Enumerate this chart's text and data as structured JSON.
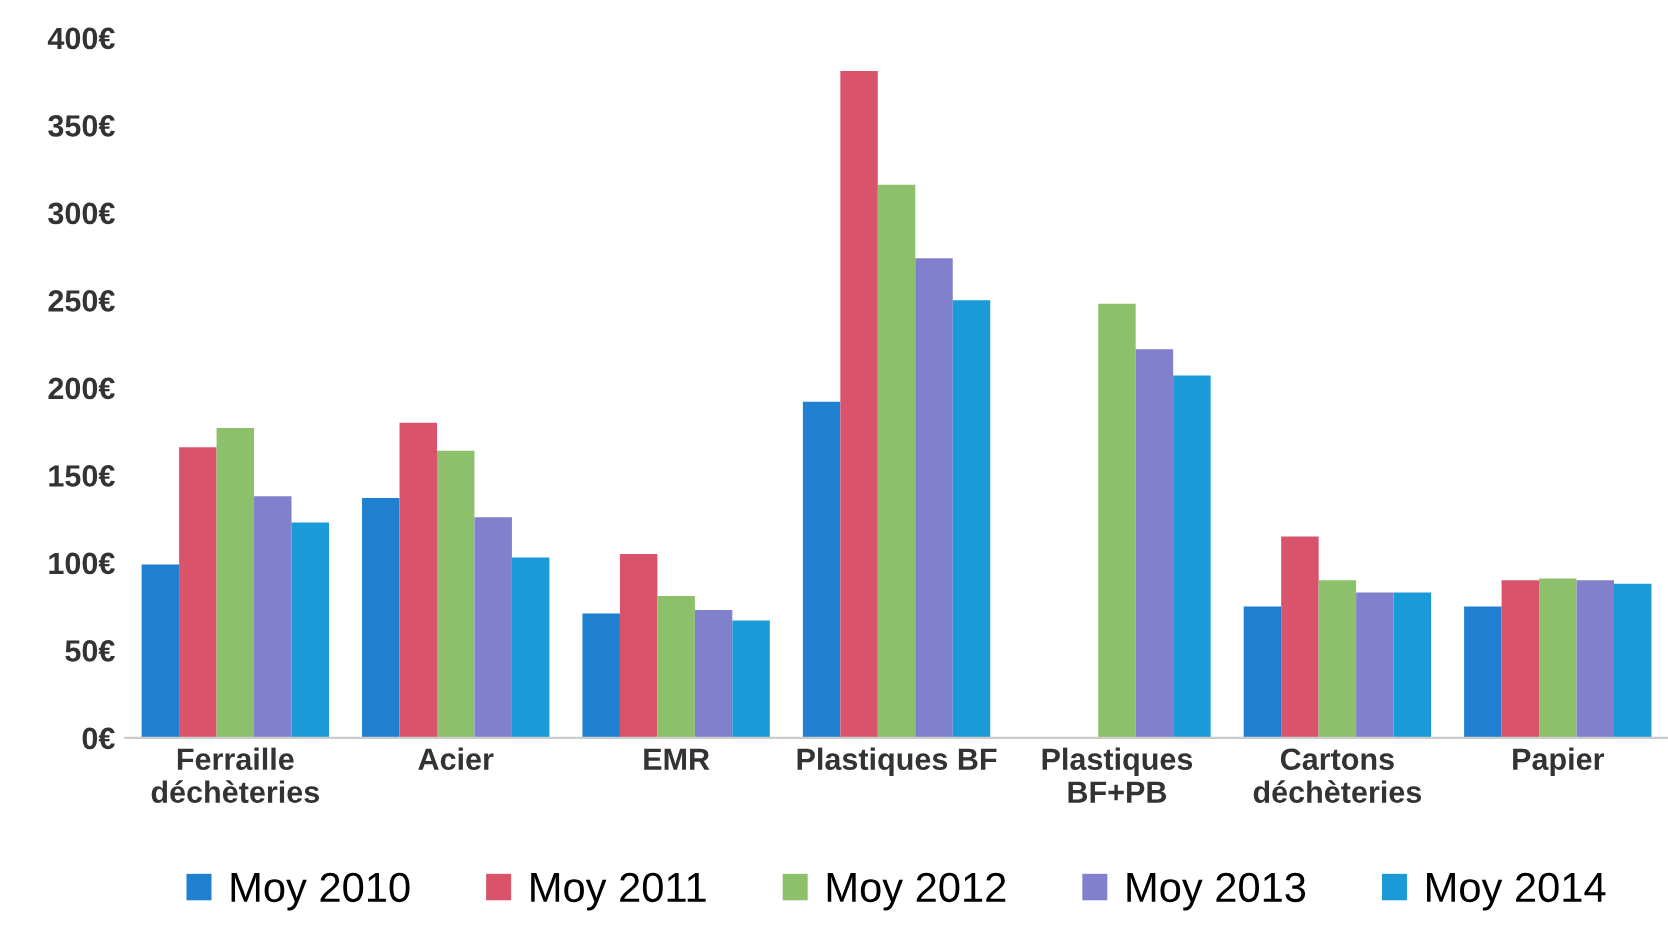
{
  "chart_data": {
    "type": "bar",
    "categories": [
      "Ferraille\ndéchèteries",
      "Acier",
      "EMR",
      "Plastiques BF",
      "Plastiques\nBF+PB",
      "Cartons\ndéchèteries",
      "Papier"
    ],
    "series": [
      {
        "name": "Moy 2010",
        "color": "#1f7fd0",
        "values": [
          99,
          137,
          71,
          192,
          null,
          75,
          75
        ]
      },
      {
        "name": "Moy 2011",
        "color": "#d9536b",
        "values": [
          166,
          180,
          105,
          381,
          null,
          115,
          90
        ]
      },
      {
        "name": "Moy 2012",
        "color": "#8cc06a",
        "values": [
          177,
          164,
          81,
          316,
          248,
          90,
          91
        ]
      },
      {
        "name": "Moy 2013",
        "color": "#8080cc",
        "values": [
          138,
          126,
          73,
          274,
          222,
          83,
          90
        ]
      },
      {
        "name": "Moy 2014",
        "color": "#1a9ad6",
        "values": [
          123,
          103,
          67,
          250,
          207,
          83,
          88
        ]
      }
    ],
    "ylim": [
      0,
      400
    ],
    "yticks": [
      {
        "value": 0,
        "label": "0€"
      },
      {
        "value": 50,
        "label": "50€"
      },
      {
        "value": 100,
        "label": "100€"
      },
      {
        "value": 150,
        "label": "150€"
      },
      {
        "value": 200,
        "label": "200€"
      },
      {
        "value": 250,
        "label": "250€"
      },
      {
        "value": 300,
        "label": "300€"
      },
      {
        "value": 350,
        "label": "350€"
      },
      {
        "value": 400,
        "label": "400€"
      }
    ],
    "grid": false,
    "legend": "bottom"
  }
}
